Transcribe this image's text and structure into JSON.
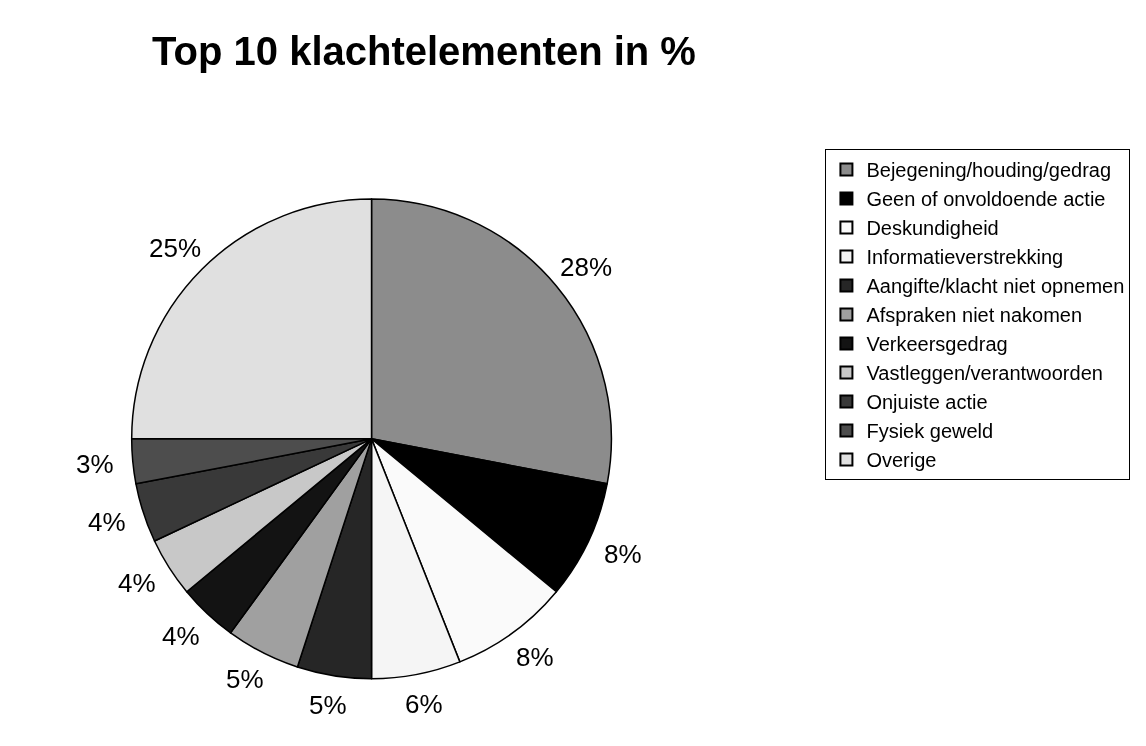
{
  "chart_data": {
    "type": "pie",
    "title": "Top 10 klachtelementen in %",
    "categories": [
      "Bejegening/houding/gedrag",
      "Geen of onvoldoende actie",
      "Deskundigheid",
      "Informatieverstrekking",
      "Aangifte/klacht niet opnemen",
      "Afspraken niet nakomen",
      "Verkeersgedrag",
      "Vastleggen/verantwoorden",
      "Onjuiste actie",
      "Fysiek geweld",
      "Overige"
    ],
    "values": [
      28,
      8,
      8,
      6,
      5,
      5,
      4,
      4,
      4,
      3,
      25
    ],
    "value_labels": [
      "28%",
      "8%",
      "8%",
      "6%",
      "5%",
      "5%",
      "4%",
      "4%",
      "4%",
      "3%",
      "25%"
    ],
    "colors": [
      "#8c8c8c",
      "#000000",
      "#fafafa",
      "#f5f5f5",
      "#262626",
      "#a0a0a0",
      "#131313",
      "#c8c8c8",
      "#393939",
      "#4d4d4d",
      "#e0e0e0"
    ],
    "legend": "right"
  }
}
